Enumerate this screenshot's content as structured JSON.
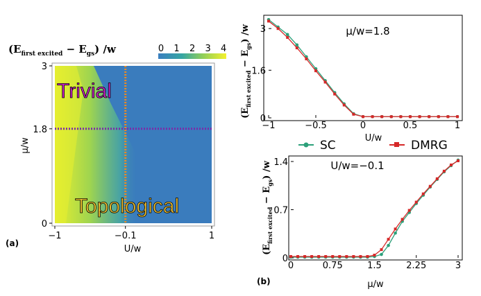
{
  "colors": {
    "sc": "#2ca07a",
    "dmrg": "#d62828",
    "trivial_text": "#cc22cc",
    "topological_text": "#f0c030",
    "cut_horizontal": "#7b2aa8",
    "cut_vertical": "#ee8a22"
  },
  "panel_a": {
    "label": "(a)",
    "colorbar_title": "(E",
    "colorbar_title_sub": "first excited",
    "colorbar_title_rest": " − E",
    "colorbar_title_sub2": "gs",
    "colorbar_title_end": ") /w",
    "colorbar_ticks": [
      "0",
      "1",
      "2",
      "3",
      "4"
    ],
    "xlabel": "U/w",
    "ylabel": "μ/w",
    "xticks": [
      "−1",
      "−0.1",
      "1"
    ],
    "yticks": [
      "0",
      "1.8",
      "3"
    ],
    "region_trivial": "Trivial",
    "region_topological": "Topological"
  },
  "panel_b": {
    "label": "(b)",
    "ylabel_main": "(E",
    "ylabel_sub": "first excited",
    "ylabel_rest": " − E",
    "ylabel_sub2": "gs",
    "ylabel_end": ") /w",
    "legend": [
      "SC",
      "DMRG"
    ]
  },
  "chart_data": [
    {
      "type": "heatmap",
      "panel": "a",
      "xlabel": "U/w",
      "ylabel": "μ/w",
      "xlim": [
        -1,
        1
      ],
      "ylim": [
        0,
        3
      ],
      "colorbar_range": [
        0,
        4
      ],
      "cuts": {
        "horizontal_mu": 1.8,
        "vertical_U": -0.1
      }
    },
    {
      "type": "line",
      "panel": "b-top",
      "annotation": "μ/w=1.8",
      "xlabel": "U/w",
      "xlim": [
        -1,
        1
      ],
      "ylim": [
        0,
        3.4
      ],
      "xticks": [
        "−1",
        "−0.5",
        "0",
        "0.5",
        "1"
      ],
      "yticks": [
        "0",
        "1.6",
        "3"
      ],
      "x": [
        -1.0,
        -0.9,
        -0.8,
        -0.7,
        -0.6,
        -0.5,
        -0.4,
        -0.3,
        -0.2,
        -0.1,
        0.0,
        0.1,
        0.2,
        0.3,
        0.4,
        0.5,
        0.6,
        0.7,
        0.8,
        0.9,
        1.0
      ],
      "series": [
        {
          "name": "SC",
          "values": [
            3.3,
            3.05,
            2.8,
            2.45,
            2.05,
            1.65,
            1.25,
            0.85,
            0.47,
            0.14,
            0.04,
            0.04,
            0.04,
            0.04,
            0.04,
            0.04,
            0.04,
            0.04,
            0.04,
            0.04,
            0.04
          ]
        },
        {
          "name": "DMRG",
          "values": [
            3.25,
            3.0,
            2.7,
            2.35,
            1.98,
            1.58,
            1.2,
            0.8,
            0.43,
            0.12,
            0.04,
            0.04,
            0.04,
            0.04,
            0.04,
            0.04,
            0.04,
            0.04,
            0.04,
            0.04,
            0.04
          ]
        }
      ]
    },
    {
      "type": "line",
      "panel": "b-bottom",
      "annotation": "U/w=−0.1",
      "xlabel": "μ/w",
      "xlim": [
        0,
        3
      ],
      "ylim": [
        0,
        1.45
      ],
      "xticks": [
        "0",
        "0.75",
        "1.5",
        "2.25",
        "3"
      ],
      "yticks": [
        "0",
        "0.7",
        "1.4"
      ],
      "x": [
        0.0,
        0.125,
        0.25,
        0.375,
        0.5,
        0.625,
        0.75,
        0.875,
        1.0,
        1.125,
        1.25,
        1.375,
        1.5,
        1.625,
        1.75,
        1.875,
        2.0,
        2.125,
        2.25,
        2.375,
        2.5,
        2.625,
        2.75,
        2.875,
        3.0
      ],
      "series": [
        {
          "name": "SC",
          "values": [
            0.01,
            0.01,
            0.01,
            0.01,
            0.01,
            0.01,
            0.01,
            0.01,
            0.01,
            0.01,
            0.01,
            0.01,
            0.02,
            0.05,
            0.18,
            0.36,
            0.53,
            0.66,
            0.79,
            0.91,
            1.03,
            1.14,
            1.25,
            1.34,
            1.42
          ]
        },
        {
          "name": "DMRG",
          "values": [
            0.02,
            0.02,
            0.02,
            0.02,
            0.02,
            0.02,
            0.02,
            0.02,
            0.02,
            0.02,
            0.02,
            0.02,
            0.04,
            0.12,
            0.27,
            0.42,
            0.56,
            0.69,
            0.81,
            0.93,
            1.04,
            1.15,
            1.26,
            1.35,
            1.41
          ]
        }
      ]
    }
  ]
}
